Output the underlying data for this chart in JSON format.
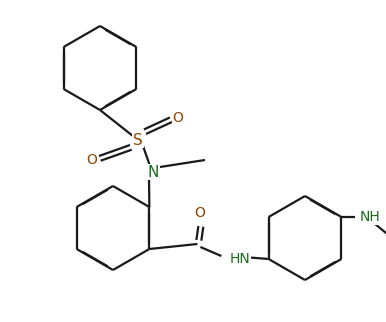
{
  "bg_color": "#ffffff",
  "lc": "#1a1a1a",
  "N_color": "#1a6b1a",
  "O_color": "#8b4500",
  "S_color": "#8b4500",
  "lw": 1.6,
  "dbo": 0.013,
  "figsize": [
    3.86,
    3.22
  ],
  "dpi": 100,
  "xlim": [
    0,
    386
  ],
  "ylim": [
    0,
    322
  ]
}
